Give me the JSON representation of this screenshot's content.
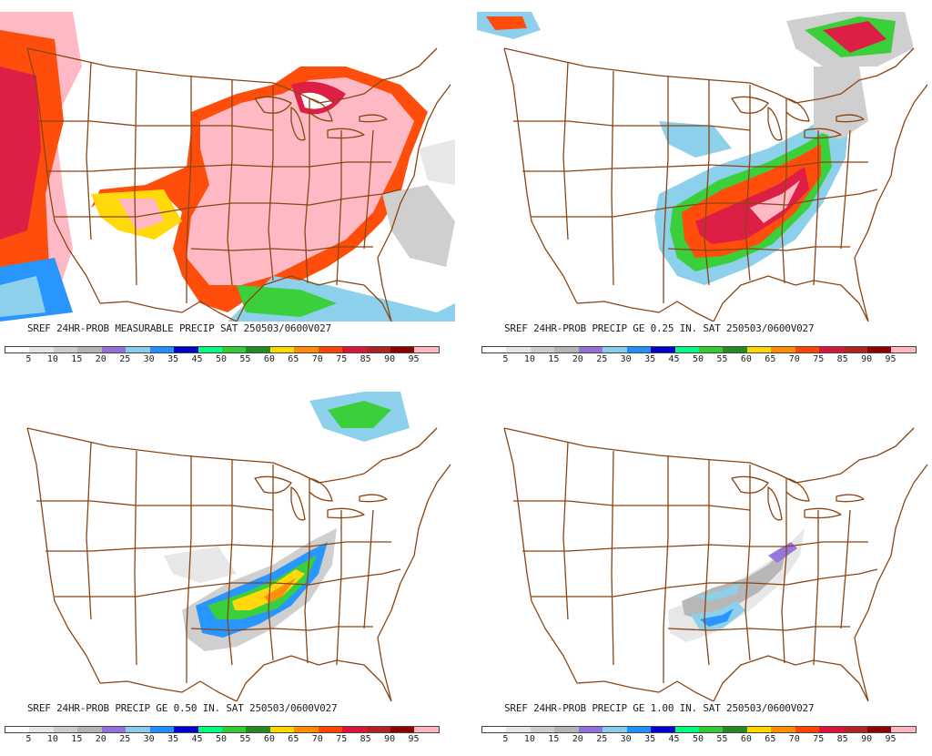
{
  "colors": {
    "border": "#8b4513",
    "scale": [
      "#ffffff",
      "#e6e6e6",
      "#cdcdcd",
      "#b4b4b4",
      "#9370db",
      "#87ceeb",
      "#1e90ff",
      "#0000cd",
      "#00ff7f",
      "#32cd32",
      "#228b22",
      "#ffd700",
      "#ff8c00",
      "#ff4500",
      "#dc143c",
      "#b22222",
      "#8b0000",
      "#ffb6c1"
    ]
  },
  "tick_labels": [
    "5",
    "10",
    "15",
    "20",
    "25",
    "30",
    "35",
    "45",
    "50",
    "55",
    "60",
    "65",
    "70",
    "75",
    "85",
    "90",
    "95"
  ],
  "panels": [
    {
      "title": "SREF 24HR-PROB MEASURABLE PRECIP SAT 250503/0600V027"
    },
    {
      "title": "SREF 24HR-PROB PRECIP GE 0.25 IN. SAT 250503/0600V027"
    },
    {
      "title": "SREF 24HR-PROB PRECIP GE 0.50 IN. SAT 250503/0600V027"
    },
    {
      "title": "SREF 24HR-PROB PRECIP GE 1.00 IN. SAT 250503/0600V027"
    }
  ]
}
